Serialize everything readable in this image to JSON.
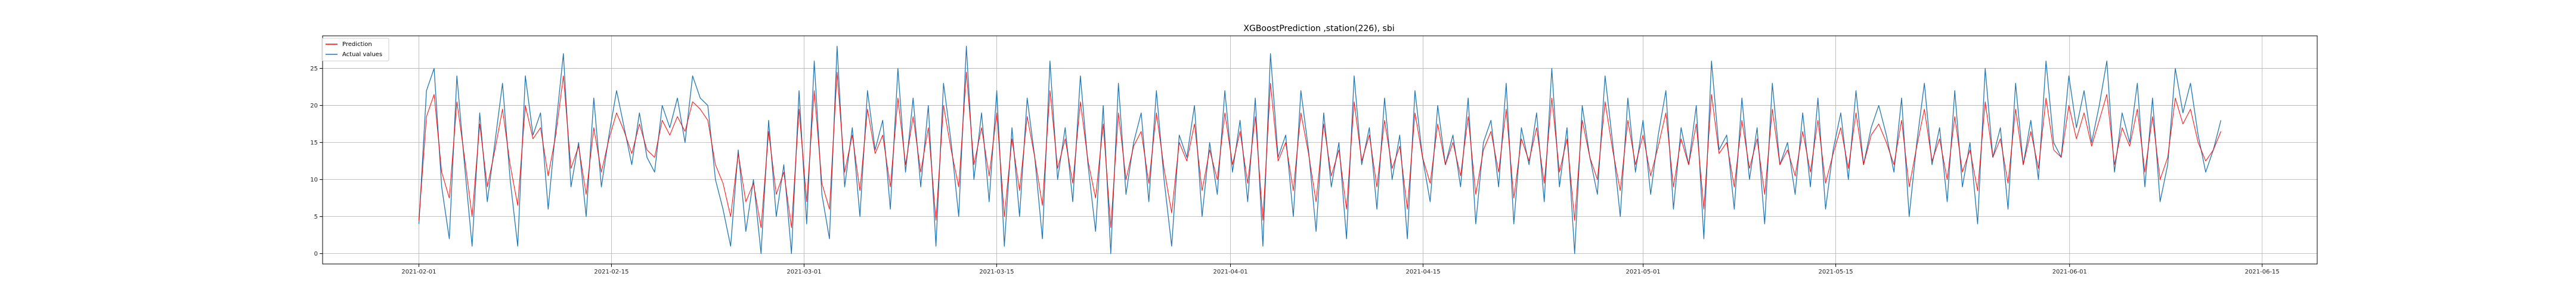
{
  "chart_data": {
    "type": "line",
    "title": "XGBoostPrediction ,station(226), sbi",
    "xlabel": "",
    "ylabel": "",
    "x_range": [
      "2021-01-25",
      "2021-06-19"
    ],
    "ylim": [
      -1.4,
      29.4
    ],
    "x_ticks": [
      "2021-02-01",
      "2021-02-15",
      "2021-03-01",
      "2021-03-15",
      "2021-04-01",
      "2021-04-15",
      "2021-05-01",
      "2021-05-15",
      "2021-06-01",
      "2021-06-15"
    ],
    "y_ticks": [
      0,
      5,
      10,
      15,
      20,
      25
    ],
    "grid": true,
    "legend_position": "top-left",
    "series": [
      {
        "name": "Prediction",
        "color": "#ff0000",
        "x_start": "2021-02-01",
        "x_end": "2021-06-12",
        "values": [
          4.5,
          18.5,
          21.5,
          11.0,
          7.5,
          20.5,
          13.0,
          5.0,
          17.5,
          9.0,
          14.0,
          19.5,
          12.0,
          6.5,
          20.0,
          15.5,
          17.0,
          10.5,
          16.0,
          24.0,
          11.5,
          14.5,
          8.0,
          17.0,
          11.0,
          15.5,
          19.0,
          16.5,
          13.5,
          17.5,
          14.0,
          13.0,
          18.0,
          16.0,
          18.5,
          16.5,
          20.5,
          19.5,
          18.0,
          12.0,
          9.5,
          5.0,
          13.5,
          7.0,
          9.5,
          3.5,
          16.5,
          8.0,
          11.0,
          3.5,
          19.5,
          7.0,
          22.0,
          9.5,
          6.0,
          24.5,
          11.0,
          16.0,
          8.5,
          19.5,
          13.5,
          16.0,
          9.0,
          21.0,
          12.0,
          18.5,
          11.0,
          17.0,
          4.5,
          20.0,
          14.0,
          9.0,
          24.5,
          12.0,
          17.0,
          10.5,
          19.0,
          5.0,
          15.5,
          8.5,
          18.5,
          13.0,
          6.5,
          22.0,
          11.5,
          15.5,
          9.5,
          20.5,
          12.5,
          7.5,
          17.5,
          3.5,
          19.0,
          10.0,
          14.5,
          16.5,
          9.5,
          19.0,
          11.5,
          5.5,
          15.0,
          12.5,
          17.5,
          8.5,
          14.0,
          10.0,
          19.0,
          12.0,
          16.5,
          9.5,
          18.5,
          4.5,
          23.0,
          12.5,
          15.0,
          8.5,
          19.0,
          13.5,
          7.0,
          17.5,
          10.5,
          14.0,
          6.0,
          20.5,
          12.5,
          16.0,
          9.0,
          18.0,
          11.5,
          14.5,
          6.0,
          19.0,
          13.0,
          9.5,
          17.5,
          12.0,
          15.0,
          10.5,
          18.5,
          8.0,
          14.0,
          16.5,
          11.0,
          19.5,
          7.5,
          15.5,
          12.5,
          17.0,
          9.5,
          21.0,
          11.0,
          15.5,
          4.5,
          18.0,
          13.0,
          10.0,
          20.5,
          14.0,
          8.5,
          18.0,
          12.0,
          16.0,
          10.5,
          14.5,
          19.0,
          9.0,
          15.5,
          12.0,
          17.5,
          6.0,
          21.5,
          13.5,
          15.0,
          9.0,
          18.0,
          11.5,
          15.5,
          8.0,
          19.5,
          12.0,
          14.0,
          10.5,
          16.5,
          11.0,
          18.0,
          9.5,
          13.5,
          17.0,
          11.5,
          19.0,
          12.0,
          16.0,
          17.5,
          15.0,
          12.0,
          18.0,
          9.0,
          14.5,
          19.5,
          12.5,
          15.5,
          10.0,
          18.5,
          11.0,
          14.0,
          8.5,
          20.5,
          13.0,
          15.5,
          9.5,
          19.5,
          12.0,
          16.5,
          11.5,
          21.0,
          14.0,
          13.0,
          20.0,
          15.5,
          19.0,
          14.5,
          18.0,
          21.5,
          12.0,
          17.0,
          14.5,
          19.5,
          11.0,
          18.5,
          10.0,
          13.0,
          21.0,
          17.5,
          19.5,
          15.0,
          12.5,
          14.0,
          16.5
        ]
      },
      {
        "name": "Actual values",
        "color": "#1f77b4",
        "x_start": "2021-02-01",
        "x_end": "2021-06-12",
        "values": [
          4.0,
          22.0,
          25.0,
          9.0,
          2.0,
          24.0,
          12.0,
          1.0,
          19.0,
          7.0,
          15.0,
          23.0,
          10.0,
          1.0,
          24.0,
          16.0,
          19.0,
          6.0,
          17.0,
          27.0,
          9.0,
          15.0,
          5.0,
          21.0,
          9.0,
          16.0,
          22.0,
          17.0,
          12.0,
          19.0,
          13.0,
          11.0,
          20.0,
          17.0,
          21.0,
          15.0,
          24.0,
          21.0,
          20.0,
          10.0,
          6.0,
          1.0,
          14.0,
          3.0,
          10.0,
          0.0,
          18.0,
          5.0,
          12.0,
          0.0,
          22.0,
          4.0,
          26.0,
          8.0,
          2.0,
          28.0,
          9.0,
          17.0,
          5.0,
          22.0,
          14.0,
          18.0,
          6.0,
          25.0,
          11.0,
          21.0,
          9.0,
          20.0,
          1.0,
          23.0,
          15.0,
          5.0,
          28.0,
          10.0,
          19.0,
          7.0,
          22.0,
          1.0,
          17.0,
          5.0,
          21.0,
          13.0,
          2.0,
          26.0,
          10.0,
          17.0,
          7.0,
          24.0,
          12.0,
          3.0,
          20.0,
          0.0,
          23.0,
          8.0,
          15.0,
          19.0,
          7.0,
          22.0,
          10.0,
          1.0,
          16.0,
          13.0,
          20.0,
          5.0,
          15.0,
          8.0,
          22.0,
          11.0,
          18.0,
          7.0,
          21.0,
          1.0,
          27.0,
          13.0,
          16.0,
          5.0,
          22.0,
          14.0,
          3.0,
          19.0,
          9.0,
          15.0,
          2.0,
          24.0,
          12.0,
          17.0,
          6.0,
          21.0,
          10.0,
          16.0,
          2.0,
          22.0,
          13.0,
          7.0,
          20.0,
          12.0,
          16.0,
          9.0,
          21.0,
          4.0,
          15.0,
          18.0,
          9.0,
          23.0,
          4.0,
          17.0,
          12.0,
          19.0,
          7.0,
          25.0,
          9.0,
          17.0,
          0.0,
          20.0,
          13.0,
          8.0,
          24.0,
          15.0,
          5.0,
          21.0,
          11.0,
          18.0,
          8.0,
          16.0,
          22.0,
          6.0,
          17.0,
          12.0,
          20.0,
          2.0,
          26.0,
          14.0,
          16.0,
          6.0,
          21.0,
          10.0,
          17.0,
          4.0,
          23.0,
          12.0,
          15.0,
          8.0,
          19.0,
          9.0,
          21.0,
          6.0,
          14.0,
          19.0,
          10.0,
          22.0,
          12.0,
          17.0,
          20.0,
          16.0,
          11.0,
          21.0,
          5.0,
          15.0,
          23.0,
          12.0,
          17.0,
          7.0,
          22.0,
          9.0,
          15.0,
          4.0,
          25.0,
          13.0,
          17.0,
          6.0,
          23.0,
          12.0,
          18.0,
          10.0,
          26.0,
          15.0,
          13.0,
          24.0,
          17.0,
          22.0,
          15.0,
          20.0,
          26.0,
          11.0,
          19.0,
          15.0,
          23.0,
          9.0,
          21.0,
          7.0,
          12.0,
          25.0,
          19.0,
          23.0,
          16.0,
          11.0,
          14.0,
          18.0
        ]
      }
    ]
  }
}
